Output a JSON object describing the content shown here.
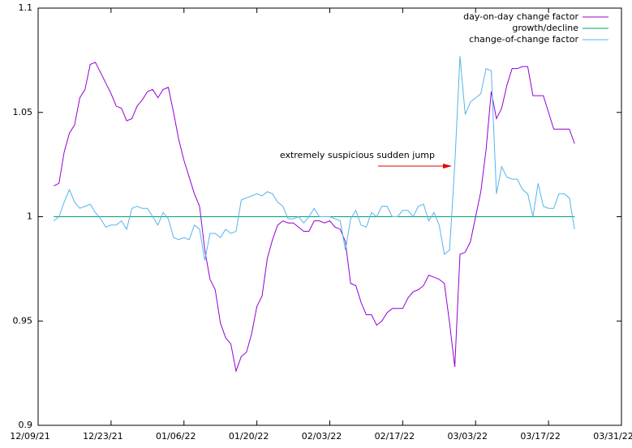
{
  "chart_data": {
    "type": "line",
    "annotation": "extremely suspicious sudden jump",
    "legend": "top right",
    "grid": false,
    "xlim": [
      "2021-12-09",
      "2022-03-31"
    ],
    "xticks": [
      {
        "value": "2021-12-09",
        "label": "12/09/21"
      },
      {
        "value": "2021-12-23",
        "label": "12/23/21"
      },
      {
        "value": "2022-01-06",
        "label": "01/06/22"
      },
      {
        "value": "2022-01-20",
        "label": "01/20/22"
      },
      {
        "value": "2022-02-03",
        "label": "02/03/22"
      },
      {
        "value": "2022-02-17",
        "label": "02/17/22"
      },
      {
        "value": "2022-03-03",
        "label": "03/03/22"
      },
      {
        "value": "2022-03-17",
        "label": "03/17/22"
      },
      {
        "value": "2022-03-31",
        "label": "03/31/22"
      }
    ],
    "ylim": [
      0.9,
      1.1
    ],
    "yticks": [
      0.9,
      0.95,
      1,
      1.05,
      1.1
    ],
    "x": [
      "2021-12-12",
      "2021-12-13",
      "2021-12-14",
      "2021-12-15",
      "2021-12-16",
      "2021-12-17",
      "2021-12-18",
      "2021-12-19",
      "2021-12-20",
      "2021-12-21",
      "2021-12-22",
      "2021-12-23",
      "2021-12-24",
      "2021-12-25",
      "2021-12-26",
      "2021-12-27",
      "2021-12-28",
      "2021-12-29",
      "2021-12-30",
      "2021-12-31",
      "2022-01-01",
      "2022-01-02",
      "2022-01-03",
      "2022-01-04",
      "2022-01-05",
      "2022-01-06",
      "2022-01-07",
      "2022-01-08",
      "2022-01-09",
      "2022-01-10",
      "2022-01-11",
      "2022-01-12",
      "2022-01-13",
      "2022-01-14",
      "2022-01-15",
      "2022-01-16",
      "2022-01-17",
      "2022-01-18",
      "2022-01-19",
      "2022-01-20",
      "2022-01-21",
      "2022-01-22",
      "2022-01-23",
      "2022-01-24",
      "2022-01-25",
      "2022-01-26",
      "2022-01-27",
      "2022-01-28",
      "2022-01-29",
      "2022-01-30",
      "2022-01-31",
      "2022-02-01",
      "2022-02-02",
      "2022-02-03",
      "2022-02-04",
      "2022-02-05",
      "2022-02-06",
      "2022-02-07",
      "2022-02-08",
      "2022-02-09",
      "2022-02-10",
      "2022-02-11",
      "2022-02-12",
      "2022-02-13",
      "2022-02-14",
      "2022-02-15",
      "2022-02-16",
      "2022-02-17",
      "2022-02-18",
      "2022-02-19",
      "2022-02-20",
      "2022-02-21",
      "2022-02-22",
      "2022-02-23",
      "2022-02-24",
      "2022-02-25",
      "2022-02-26",
      "2022-02-27",
      "2022-02-28",
      "2022-03-01",
      "2022-03-02",
      "2022-03-03",
      "2022-03-04",
      "2022-03-05",
      "2022-03-06",
      "2022-03-07",
      "2022-03-08",
      "2022-03-09",
      "2022-03-10",
      "2022-03-11",
      "2022-03-12",
      "2022-03-13",
      "2022-03-14",
      "2022-03-15",
      "2022-03-16",
      "2022-03-17",
      "2022-03-18",
      "2022-03-19",
      "2022-03-20",
      "2022-03-21",
      "2022-03-22"
    ],
    "series": [
      {
        "name": "day-on-day change factor",
        "color": "#9400d3",
        "values": [
          1.0148,
          1.016,
          1.031,
          1.04,
          1.044,
          1.057,
          1.061,
          1.073,
          1.074,
          1.069,
          1.064,
          1.059,
          1.053,
          1.052,
          1.046,
          1.047,
          1.053,
          1.056,
          1.06,
          1.061,
          1.057,
          1.061,
          1.062,
          1.05,
          1.037,
          1.027,
          1.019,
          1.011,
          1.005,
          0.984,
          0.97,
          0.965,
          0.949,
          0.942,
          0.939,
          0.926,
          0.933,
          0.935,
          0.944,
          0.957,
          0.962,
          0.98,
          0.989,
          0.996,
          0.998,
          0.997,
          0.997,
          0.995,
          0.993,
          0.993,
          0.998,
          0.998,
          0.997,
          0.998,
          0.995,
          0.994,
          0.988,
          0.968,
          0.967,
          0.959,
          0.953,
          0.953,
          0.948,
          0.95,
          0.954,
          0.956,
          0.956,
          0.956,
          0.961,
          0.964,
          0.965,
          0.967,
          0.972,
          0.971,
          0.97,
          0.968,
          0.949,
          0.928,
          0.982,
          0.983,
          0.988,
          1.0,
          1.012,
          1.032,
          1.06,
          1.047,
          1.052,
          1.063,
          1.071,
          1.071,
          1.072,
          1.072,
          1.058,
          1.058,
          1.058,
          1.05,
          1.042,
          1.042,
          1.042,
          1.042,
          1.035
        ]
      },
      {
        "name": "growth/decline",
        "color": "#009e73",
        "values": [
          1,
          1,
          1,
          1,
          1,
          1,
          1,
          1,
          1,
          1,
          1,
          1,
          1,
          1,
          1,
          1,
          1,
          1,
          1,
          1,
          1,
          1,
          1,
          1,
          1,
          1,
          1,
          1,
          1,
          1,
          1,
          1,
          1,
          1,
          1,
          1,
          1,
          1,
          1,
          1,
          1,
          1,
          1,
          1,
          1,
          1,
          1,
          1,
          1,
          1,
          1,
          1,
          1,
          1,
          1,
          1,
          1,
          1,
          1,
          1,
          1,
          1,
          1,
          1,
          1,
          1,
          1,
          1,
          1,
          1,
          1,
          1,
          1,
          1,
          1,
          1,
          1,
          1,
          1,
          1,
          1,
          1,
          1,
          1,
          1,
          1,
          1,
          1,
          1,
          1,
          1,
          1,
          1,
          1,
          1,
          1,
          1,
          1,
          1,
          1,
          1
        ]
      },
      {
        "name": "change-of-change factor",
        "color": "#56b4e9",
        "values": [
          0.998,
          1.0,
          1.007,
          1.013,
          1.007,
          1.004,
          1.005,
          1.006,
          1.002,
          0.999,
          0.995,
          0.996,
          0.996,
          0.998,
          0.994,
          1.004,
          1.005,
          1.004,
          1.004,
          1.0,
          0.996,
          1.002,
          0.999,
          0.99,
          0.989,
          0.99,
          0.989,
          0.996,
          0.994,
          0.979,
          0.992,
          0.992,
          0.99,
          0.994,
          0.992,
          0.993,
          1.008,
          1.009,
          1.01,
          1.011,
          1.01,
          1.012,
          1.011,
          1.007,
          1.005,
          0.999,
          0.999,
          1.0,
          0.997,
          1.0,
          1.004,
          1.0,
          1.0,
          1.0,
          0.999,
          0.998,
          0.984,
          0.999,
          1.003,
          0.996,
          0.995,
          1.002,
          1.0,
          1.005,
          1.005,
          1.0,
          1.0,
          1.003,
          1.003,
          1.0,
          1.005,
          1.006,
          0.998,
          1.002,
          0.996,
          0.982,
          0.984,
          1.025,
          1.077,
          1.049,
          1.055,
          1.057,
          1.059,
          1.071,
          1.07,
          1.011,
          1.024,
          1.019,
          1.018,
          1.018,
          1.013,
          1.011,
          1.0,
          1.016,
          1.005,
          1.004,
          1.004,
          1.011,
          1.011,
          1.009,
          0.994
        ]
      }
    ]
  }
}
